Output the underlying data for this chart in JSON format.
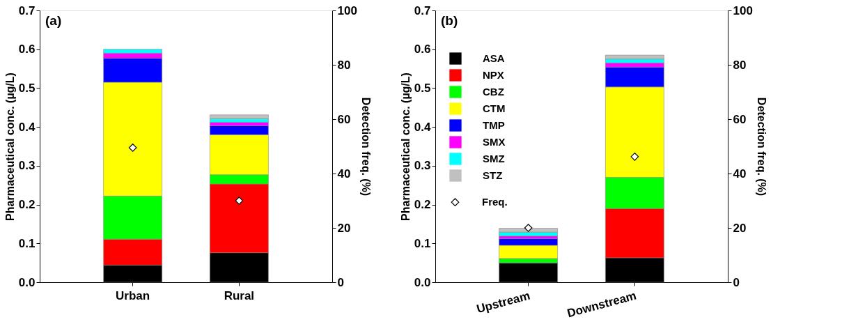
{
  "chart_data": [
    {
      "type": "bar",
      "stacked": true,
      "ylabel": "Pharmaceutical conc. (µg/L)",
      "y2label": "Detection freq. (%)",
      "annotations": [
        "(a)"
      ],
      "legend": false,
      "categories": [
        "Urban",
        "Rural"
      ],
      "ylim": [
        0,
        0.7
      ],
      "yticks": [
        {
          "value": 0,
          "label": "0.0"
        },
        0.1,
        0.2,
        0.3,
        0.4,
        0.5,
        0.6,
        0.7
      ],
      "y2lim": [
        0,
        100
      ],
      "y2ticks": [
        0,
        20,
        40,
        60,
        80,
        100
      ],
      "series": [
        {
          "color": "#000000",
          "values": [
            0.044,
            0.076
          ]
        },
        {
          "color": "#ff0000",
          "values": [
            0.067,
            0.177
          ]
        },
        {
          "color": "#00ff00",
          "values": [
            0.111,
            0.024
          ]
        },
        {
          "color": "#ffff00",
          "values": [
            0.293,
            0.103
          ]
        },
        {
          "color": "#0000ff",
          "values": [
            0.062,
            0.023
          ]
        },
        {
          "color": "#ff00ff",
          "values": [
            0.013,
            0.009
          ]
        },
        {
          "color": "#00ffff",
          "values": [
            0.01,
            0.009
          ]
        },
        {
          "color": "#c0c0c0",
          "values": [
            null,
            0.01
          ]
        },
        {
          "type": "scatter",
          "axis": "y2",
          "marker": "diamond",
          "color": "#ffffff",
          "values": [
            49.5,
            30
          ]
        }
      ]
    },
    {
      "type": "bar",
      "stacked": true,
      "ylabel": "Pharmaceutical conc. (µg/L)",
      "y2label": "Detection freq. (%)",
      "annotations": [
        "(b)"
      ],
      "legend": "top left",
      "categories": [
        "Upstream",
        "Downstream"
      ],
      "ylim": [
        0,
        0.7
      ],
      "yticks": [
        {
          "value": 0,
          "label": "0.0"
        },
        0.1,
        0.2,
        0.3,
        0.4,
        0.5,
        0.6,
        0.7
      ],
      "y2lim": [
        0,
        100
      ],
      "y2ticks": [
        0,
        20,
        40,
        60,
        80,
        100
      ],
      "series": [
        {
          "name": "ASA",
          "color": "#000000",
          "values": [
            0.05,
            0.063
          ]
        },
        {
          "name": "NPX",
          "color": "#ff0000",
          "values": [
            0,
            0.127
          ]
        },
        {
          "name": "CBZ",
          "color": "#00ff00",
          "values": [
            0.011,
            0.08
          ]
        },
        {
          "name": "CTM",
          "color": "#ffff00",
          "values": [
            0.034,
            0.233
          ]
        },
        {
          "name": "TMP",
          "color": "#0000ff",
          "values": [
            0.017,
            0.051
          ]
        },
        {
          "name": "SMX",
          "color": "#ff00ff",
          "values": [
            0.007,
            0.011
          ]
        },
        {
          "name": "SMZ",
          "color": "#00ffff",
          "values": [
            0.01,
            0.01
          ]
        },
        {
          "name": "STZ",
          "color": "#c0c0c0",
          "values": [
            0.01,
            0.01
          ]
        },
        {
          "name": "Freq.",
          "type": "scatter",
          "axis": "y2",
          "marker": "diamond",
          "color": "#ffffff",
          "values": [
            20,
            46.2
          ]
        }
      ]
    }
  ]
}
